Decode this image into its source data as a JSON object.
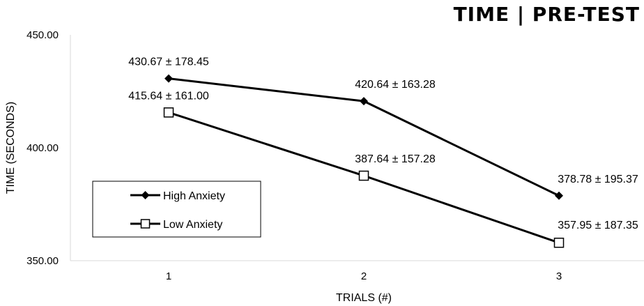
{
  "chart_data": {
    "type": "line",
    "title": "TIME | PRE-TEST",
    "xlabel": "TRIALS (#)",
    "ylabel": "TIME (SECONDS)",
    "categories": [
      "1",
      "2",
      "3"
    ],
    "ylim": [
      350,
      450
    ],
    "yticks": [
      "450.00",
      "400.00",
      "350.00"
    ],
    "ytick_values": [
      450,
      400,
      350
    ],
    "grid": false,
    "legend_position": "lower-left",
    "series": [
      {
        "name": "High Anxiety",
        "marker": "filled-diamond",
        "color": "#000000",
        "values": [
          430.67,
          420.64,
          378.78
        ],
        "labels": [
          "430.67 ± 178.45",
          "420.64 ± 163.28",
          "378.78 ± 195.37"
        ]
      },
      {
        "name": "Low Anxiety",
        "marker": "open-square",
        "color": "#000000",
        "values": [
          415.64,
          387.64,
          357.95
        ],
        "labels": [
          "415.64 ± 161.00",
          "387.64 ± 157.28",
          "357.95 ± 187.35"
        ]
      }
    ]
  }
}
